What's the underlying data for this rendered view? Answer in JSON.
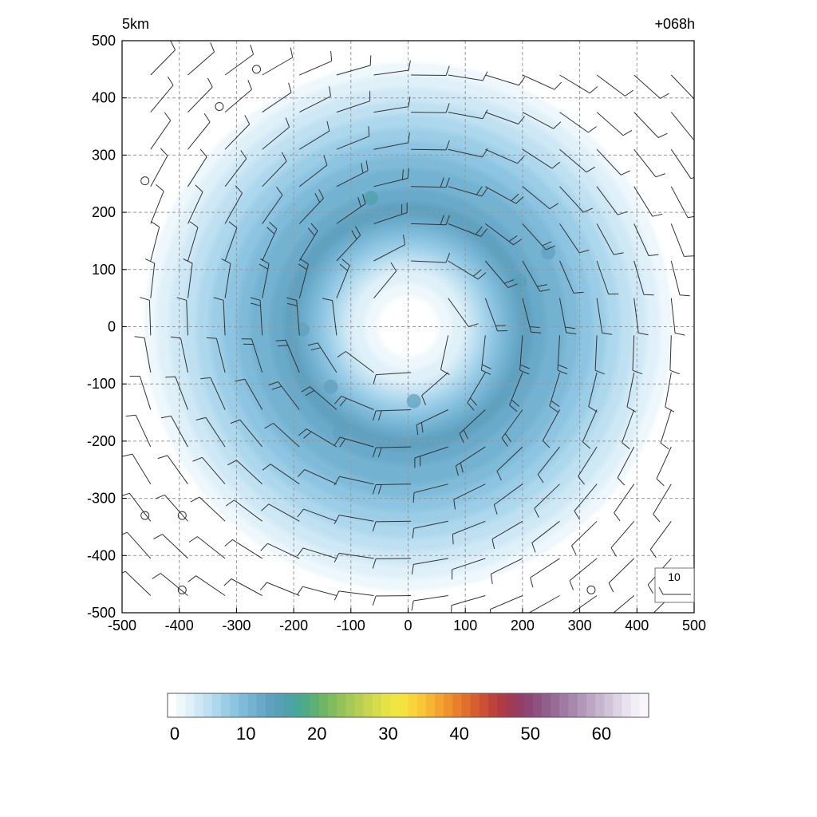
{
  "chart_data": {
    "type": "heatmap",
    "title_left": "5km",
    "title_right": "+068h",
    "xlabel": "",
    "ylabel": "",
    "xlim": [
      -500,
      500
    ],
    "ylim": [
      -500,
      500
    ],
    "x_ticks": [
      -500,
      -400,
      -300,
      -200,
      -100,
      0,
      100,
      200,
      300,
      400,
      500
    ],
    "y_ticks": [
      -500,
      -400,
      -300,
      -200,
      -100,
      0,
      100,
      200,
      300,
      400,
      500
    ],
    "grid": true,
    "field": {
      "description_units": "",
      "structure": "ring",
      "center": [
        0,
        0
      ],
      "peak_radius": 200,
      "peak_value": 14,
      "outer_radius": 470,
      "eye_radius": 90,
      "local_maxima": [
        {
          "x": -65,
          "y": 225,
          "value": 16
        },
        {
          "x": 195,
          "y": 80,
          "value": 15
        },
        {
          "x": 245,
          "y": 130,
          "value": 14
        },
        {
          "x": -185,
          "y": -5,
          "value": 14
        },
        {
          "x": -135,
          "y": -105,
          "value": 14
        },
        {
          "x": -120,
          "y": -185,
          "value": 14
        },
        {
          "x": 10,
          "y": -130,
          "value": 14
        }
      ]
    },
    "wind_barbs": {
      "spacing": 60,
      "rotation": "cyclonic",
      "calm_points": [
        {
          "x": -265,
          "y": 450
        },
        {
          "x": -330,
          "y": 385
        },
        {
          "x": -460,
          "y": 255
        },
        {
          "x": -460,
          "y": -330
        },
        {
          "x": -395,
          "y": -330
        },
        {
          "x": -395,
          "y": -460
        },
        {
          "x": 320,
          "y": -460
        }
      ]
    },
    "barb_legend": {
      "label": "10",
      "position": "bottom-right"
    },
    "colorbar": {
      "orientation": "horizontal",
      "min": 0,
      "max": 66,
      "tick_values": [
        0,
        10,
        20,
        30,
        40,
        50,
        60
      ],
      "tick_labels": [
        "0",
        "10",
        "20",
        "30",
        "40",
        "50",
        "60"
      ],
      "colors": [
        "#ffffff",
        "#eef7fc",
        "#dff0f9",
        "#cfe8f5",
        "#bee0f1",
        "#acd7ec",
        "#9bcde7",
        "#8cc4e1",
        "#7fbbd9",
        "#73b2d1",
        "#69a9c9",
        "#60a1c0",
        "#58a0b8",
        "#4fa2a9",
        "#4aa699",
        "#4fab86",
        "#5db074",
        "#6eb566",
        "#80bc5e",
        "#93c25a",
        "#a5c956",
        "#b6cf52",
        "#c7d64e",
        "#d6dc4a",
        "#e4e246",
        "#f0e643",
        "#f6e23f",
        "#f8d53b",
        "#f8c637",
        "#f6b633",
        "#f3a42f",
        "#ee922c",
        "#e8802b",
        "#e06e2c",
        "#d65e30",
        "#cb5035",
        "#be443b",
        "#b03b45",
        "#a13a55",
        "#953d66",
        "#8d4573",
        "#8d527f",
        "#915f8b",
        "#986c96",
        "#a07aa2",
        "#a988ad",
        "#b297b8",
        "#bca6c3",
        "#c6b5ce",
        "#d1c4d9",
        "#dcd4e4",
        "#e7e2ee",
        "#f1eef6",
        "#f8f6fb"
      ]
    }
  }
}
